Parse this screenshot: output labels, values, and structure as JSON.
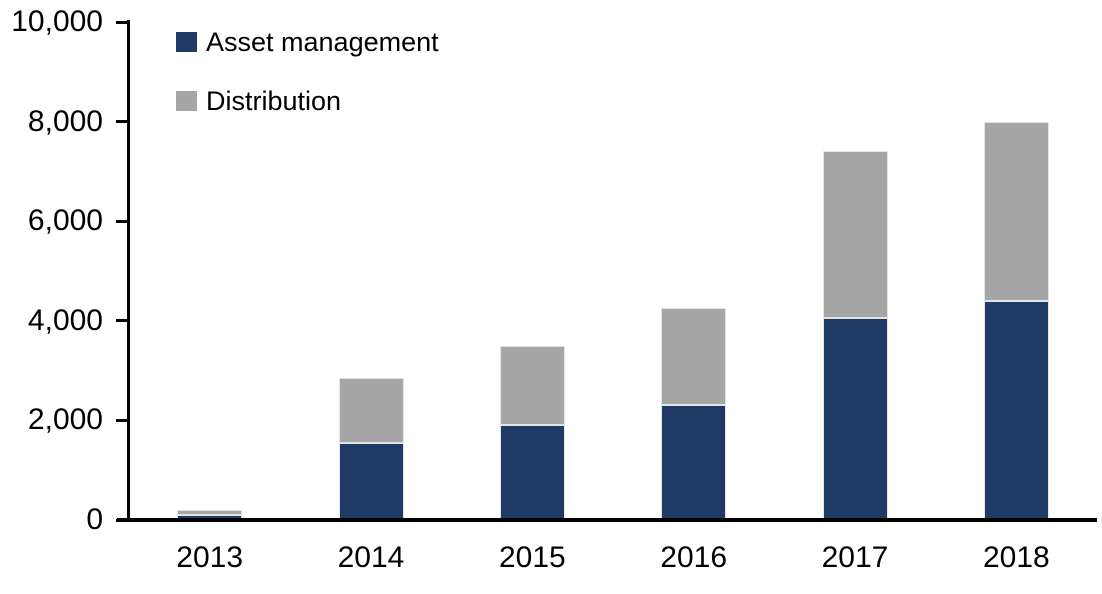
{
  "chart_data": {
    "type": "bar",
    "stacked": true,
    "title": "",
    "xlabel": "",
    "ylabel": "",
    "categories": [
      "2013",
      "2014",
      "2015",
      "2016",
      "2017",
      "2018"
    ],
    "series": [
      {
        "name": "Asset management",
        "color": "#1f3a64",
        "values": [
          100,
          1550,
          1900,
          2300,
          4050,
          4400
        ]
      },
      {
        "name": "Distribution",
        "color": "#a6a6a6",
        "values": [
          100,
          1300,
          1600,
          1950,
          3350,
          3600
        ]
      }
    ],
    "stack_totals": [
      200,
      2850,
      3500,
      4250,
      7400,
      8000
    ],
    "ylim": [
      0,
      10000
    ],
    "yticks": [
      0,
      2000,
      4000,
      6000,
      8000,
      10000
    ],
    "ytick_labels": [
      "0",
      "2,000",
      "4,000",
      "6,000",
      "8,000",
      "10,000"
    ],
    "legend_position": "top-left",
    "grid": false,
    "axis_color": "#000000",
    "background_color": "#ffffff",
    "segment_border_color": "#e4e4e4"
  }
}
